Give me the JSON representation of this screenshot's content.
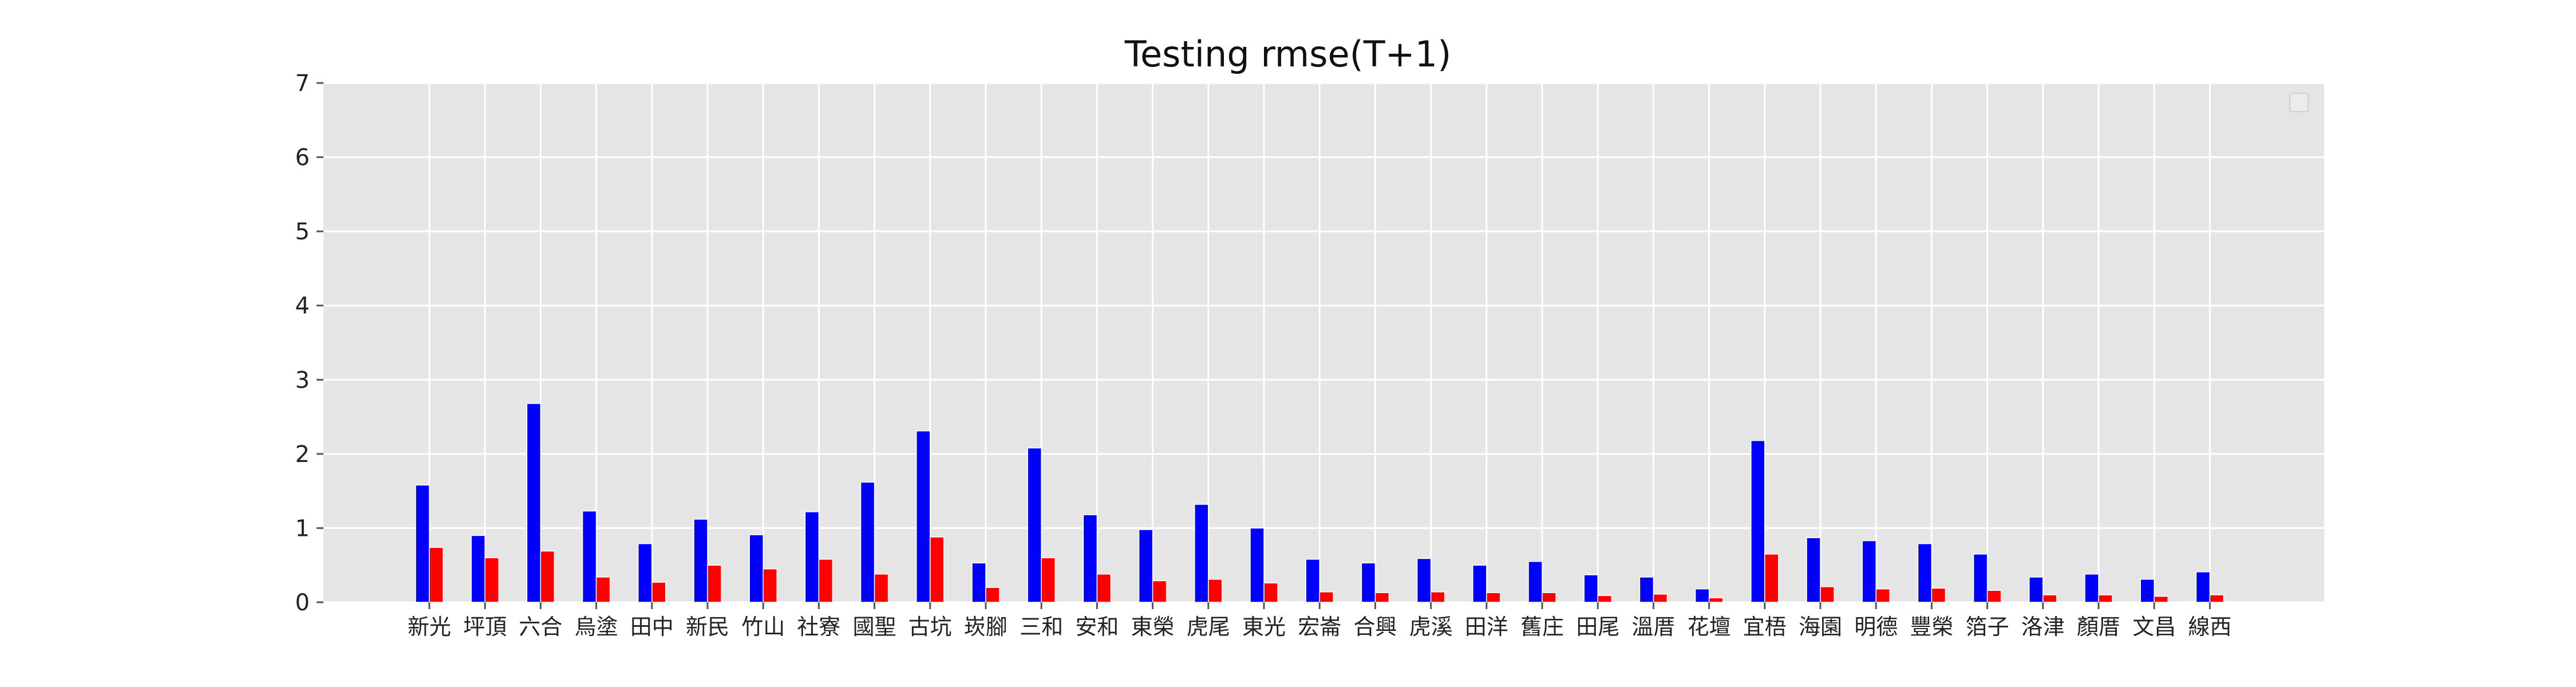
{
  "chart_data": {
    "type": "bar",
    "title": "Testing rmse(T+1)",
    "xlabel": "",
    "ylabel": "",
    "ylim": [
      0,
      7
    ],
    "yticks": [
      "0",
      "1",
      "2",
      "3",
      "4",
      "5",
      "6",
      "7"
    ],
    "grid": true,
    "legend": "top-right, empty",
    "categories": [
      "新光",
      "坪頂",
      "六合",
      "烏塗",
      "田中",
      "新民",
      "竹山",
      "社寮",
      "國聖",
      "古坑",
      "崁腳",
      "三和",
      "安和",
      "東榮",
      "虎尾",
      "東光",
      "宏崙",
      "合興",
      "虎溪",
      "田洋",
      "舊庄",
      "田尾",
      "溫厝",
      "花壇",
      "宜梧",
      "海園",
      "明德",
      "豐榮",
      "箔子",
      "洛津",
      "顏厝",
      "文昌",
      "線西"
    ],
    "series": [
      {
        "color": "#0000ff",
        "values": [
          1.58,
          0.9,
          2.68,
          1.23,
          0.79,
          1.12,
          0.91,
          1.22,
          1.62,
          2.31,
          0.53,
          2.08,
          1.18,
          0.98,
          1.32,
          1.0,
          0.58,
          0.53,
          0.59,
          0.5,
          0.55,
          0.37,
          0.34,
          0.18,
          2.18,
          0.87,
          0.83,
          0.79,
          0.65,
          0.34,
          0.38,
          0.31,
          0.41
        ]
      },
      {
        "color": "#ff0000",
        "values": [
          0.74,
          0.6,
          0.69,
          0.34,
          0.27,
          0.5,
          0.45,
          0.58,
          0.38,
          0.88,
          0.2,
          0.6,
          0.38,
          0.29,
          0.31,
          0.26,
          0.14,
          0.13,
          0.14,
          0.13,
          0.13,
          0.09,
          0.11,
          0.06,
          0.65,
          0.21,
          0.18,
          0.19,
          0.16,
          0.1,
          0.1,
          0.08,
          0.1
        ]
      }
    ]
  },
  "colors": {
    "plot_background": "#e5e5e5",
    "grid": "#ffffff",
    "bar_edge": "#ffffff"
  }
}
